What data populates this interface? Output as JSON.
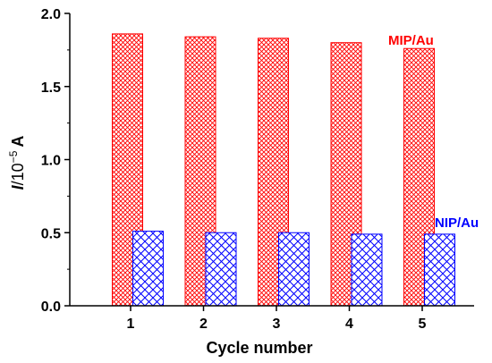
{
  "chart_data": {
    "type": "bar",
    "categories": [
      "1",
      "2",
      "3",
      "4",
      "5"
    ],
    "series": [
      {
        "name": "MIP/Au",
        "values": [
          1.86,
          1.84,
          1.83,
          1.8,
          1.76
        ],
        "color": "#ff0000"
      },
      {
        "name": "NIP/Au",
        "values": [
          0.51,
          0.5,
          0.5,
          0.49,
          0.49
        ],
        "color": "#0000ff"
      }
    ],
    "xlabel": "Cycle number",
    "ylabel_prefix": "I",
    "ylabel_unit": "/10",
    "ylabel_exponent": "−5",
    "ylabel_suffix": "A",
    "ylim": [
      0,
      2.0
    ],
    "yticks": [
      "0.0",
      "0.5",
      "1.0",
      "1.5",
      "2.0"
    ],
    "grid": false,
    "legend_placement": "inline-labels"
  }
}
